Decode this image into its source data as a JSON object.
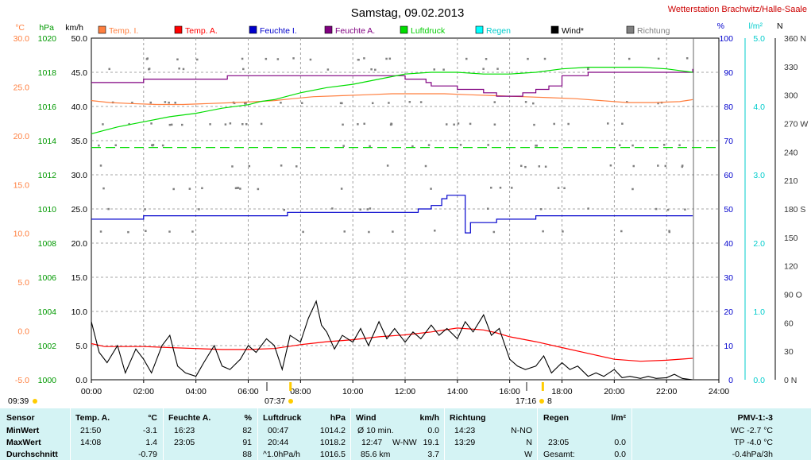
{
  "header": {
    "title": "Samstag, 09.02.2013",
    "station": "Wetterstation Brachwitz/Halle-Saale"
  },
  "colors": {
    "temp_inside": "#ff7f3f",
    "temp_outside": "#ff0000",
    "humidity_inside": "#0000cc",
    "humidity_outside": "#800080",
    "pressure": "#00dd00",
    "rain": "#00ffff",
    "wind": "#000000",
    "direction": "#808080",
    "stats_background": "#d4f3f4"
  },
  "chart_data": {
    "type": "line",
    "legend": [
      {
        "label": "Temp. I.",
        "color": "#ff7f3f"
      },
      {
        "label": "Temp. A.",
        "color": "#ff0000"
      },
      {
        "label": "Feuchte I.",
        "color": "#0000cc"
      },
      {
        "label": "Feuchte A.",
        "color": "#800080"
      },
      {
        "label": "Luftdruck",
        "color": "#00dd00"
      },
      {
        "label": "Regen",
        "color": "#00ffff"
      },
      {
        "label": "Wind*",
        "color": "#000000"
      },
      {
        "label": "Richtung",
        "color": "#808080"
      }
    ],
    "axis_units": {
      "temp": "°C",
      "pressure": "hPa",
      "wind": "km/h",
      "humidity": "%",
      "rain": "l/m²",
      "direction": "N"
    },
    "x_ticks": [
      "00:00",
      "02:00",
      "04:00",
      "06:00",
      "08:00",
      "10:00",
      "12:00",
      "14:00",
      "16:00",
      "18:00",
      "20:00",
      "22:00",
      "24:00"
    ],
    "xlim": [
      0,
      24
    ],
    "y_temp": {
      "range": [
        -5,
        30
      ],
      "ticks": [
        "30.0",
        "25.0",
        "20.0",
        "15.0",
        "10.0",
        "5.0",
        "0.0",
        "-5.0"
      ]
    },
    "y_pressure": {
      "range": [
        1000,
        1020
      ],
      "ticks": [
        "1020",
        "1018",
        "1016",
        "1014",
        "1012",
        "1010",
        "1008",
        "1006",
        "1004",
        "1002",
        "1000"
      ]
    },
    "y_wind": {
      "range": [
        0,
        50
      ],
      "ticks": [
        "50.0",
        "45.0",
        "40.0",
        "35.0",
        "30.0",
        "25.0",
        "20.0",
        "15.0",
        "10.0",
        "5.0",
        "0.0"
      ]
    },
    "y_humidity": {
      "range": [
        0,
        100
      ],
      "ticks": [
        "100",
        "90",
        "80",
        "70",
        "60",
        "50",
        "40",
        "30",
        "20",
        "10",
        "0"
      ]
    },
    "y_rain": {
      "range": [
        0,
        5
      ],
      "ticks": [
        "5.0",
        "4.0",
        "3.0",
        "2.0",
        "1.0",
        "0.0"
      ]
    },
    "y_direction": {
      "range": [
        0,
        360
      ],
      "ticks": [
        "360 N",
        "330",
        "300",
        "270 W",
        "240",
        "210",
        "180 S",
        "150",
        "120",
        "90 O",
        "60",
        "30",
        "0 N"
      ]
    },
    "extra_marks": {
      "sunrise": "07:37",
      "sunset": "17:16",
      "day_start": "09:39",
      "day_length_hours": "8"
    },
    "dashed_reference": {
      "temp": 18.8
    },
    "series": [
      {
        "name": "Temp. I.",
        "axis": "temp",
        "x": [
          0,
          0.7,
          1.5,
          2.5,
          3.5,
          4.5,
          5.5,
          6.3,
          7,
          7.7,
          8.5,
          9.5,
          10.5,
          11.5,
          12.5,
          13.5,
          14.5,
          15.5,
          16.5,
          17.5,
          18.5,
          19.5,
          20.5,
          21.5,
          22.5,
          23
        ],
        "y": [
          23.6,
          23.4,
          23.3,
          23.2,
          23.2,
          23.3,
          23.4,
          23.5,
          23.6,
          23.8,
          24.0,
          24.1,
          24.2,
          24.3,
          24.3,
          24.3,
          24.2,
          24.1,
          24.0,
          23.9,
          23.8,
          23.6,
          23.4,
          23.4,
          23.5,
          23.7
        ]
      },
      {
        "name": "Temp. A.",
        "axis": "temp",
        "x": [
          0,
          0.5,
          1,
          2,
          3,
          4,
          5,
          6,
          7,
          8,
          9,
          10,
          11,
          12,
          13,
          14,
          15,
          15.5,
          16,
          17,
          18,
          19,
          20,
          21,
          22,
          23
        ],
        "y": [
          -1.3,
          -1.6,
          -1.6,
          -1.6,
          -1.7,
          -1.8,
          -1.9,
          -1.9,
          -1.8,
          -1.4,
          -1.1,
          -0.9,
          -0.6,
          -0.4,
          -0.1,
          0.3,
          0.1,
          -0.2,
          -0.6,
          -1.1,
          -1.7,
          -2.3,
          -2.9,
          -3.1,
          -3.0,
          -2.8
        ]
      },
      {
        "name": "Feuchte I.",
        "axis": "humidity",
        "x": [
          0,
          1,
          2,
          3,
          4,
          5,
          6,
          7,
          7.5,
          8,
          9,
          10,
          11,
          12,
          12.5,
          13,
          13.4,
          13.6,
          14,
          14.2,
          14.3,
          14.5,
          14.7,
          15,
          15.3,
          15.5,
          16,
          17,
          18,
          19,
          20,
          21,
          22,
          23
        ],
        "y": [
          47,
          47,
          48,
          48,
          48,
          48,
          48,
          48,
          49,
          49,
          49,
          49,
          49,
          49,
          50,
          51,
          53,
          54,
          54,
          54,
          43,
          46,
          46,
          46,
          46,
          47,
          47,
          48,
          48,
          48,
          48,
          48,
          48,
          48
        ]
      },
      {
        "name": "Feuchte A.",
        "axis": "humidity",
        "x": [
          0,
          1,
          2,
          3,
          4,
          5,
          5.2,
          6,
          7,
          8,
          9,
          10,
          11,
          12,
          12.8,
          13,
          13.5,
          14,
          15,
          15.5,
          16,
          16.5,
          17,
          17.5,
          18,
          19,
          20,
          21,
          22,
          23
        ],
        "y": [
          87,
          87,
          88,
          88,
          88,
          88,
          89,
          89,
          89,
          89,
          89,
          89,
          89,
          88,
          87,
          86,
          86,
          85,
          84,
          83,
          83,
          84,
          85,
          86,
          89,
          90,
          90,
          90,
          90,
          91
        ]
      },
      {
        "name": "Luftdruck",
        "axis": "pressure",
        "x": [
          0,
          0.5,
          1,
          2,
          3,
          4,
          5,
          6,
          6.5,
          7,
          7.5,
          8,
          9,
          10,
          11,
          12,
          13,
          14,
          15,
          16,
          17,
          18,
          19,
          20,
          21,
          22,
          22.5,
          23
        ],
        "y": [
          1014.4,
          1014.6,
          1014.8,
          1015.1,
          1015.4,
          1015.6,
          1015.9,
          1016.1,
          1016.3,
          1016.4,
          1016.6,
          1016.8,
          1017.1,
          1017.3,
          1017.6,
          1017.9,
          1018.0,
          1018.0,
          1017.9,
          1017.9,
          1018.0,
          1018.2,
          1018.3,
          1018.3,
          1018.3,
          1018.2,
          1018.1,
          1018.0
        ]
      },
      {
        "name": "Wind*",
        "axis": "wind",
        "x": [
          0,
          0.3,
          0.6,
          1,
          1.3,
          1.7,
          2,
          2.3,
          2.7,
          3,
          3.3,
          3.6,
          4,
          4.3,
          4.7,
          5,
          5.3,
          5.7,
          6,
          6.3,
          6.7,
          7,
          7.3,
          7.6,
          8,
          8.3,
          8.6,
          8.8,
          9,
          9.3,
          9.6,
          10,
          10.3,
          10.6,
          11,
          11.3,
          11.6,
          12,
          12.3,
          12.6,
          13,
          13.3,
          13.6,
          14,
          14.3,
          14.6,
          15,
          15.3,
          15.6,
          16,
          16.3,
          16.6,
          17,
          17.3,
          17.6,
          18,
          18.3,
          18.6,
          19,
          19.3,
          19.6,
          20,
          20.3,
          20.6,
          21,
          21.3,
          21.6,
          22,
          22.3,
          22.6,
          23
        ],
        "y": [
          8.5,
          4.0,
          2.5,
          5.0,
          1.0,
          4.5,
          3.0,
          1.0,
          5.0,
          6.5,
          2.0,
          1.0,
          0.5,
          2.5,
          5.0,
          2.0,
          1.5,
          3.0,
          5.0,
          4.0,
          6.0,
          5.0,
          1.5,
          6.5,
          5.5,
          9.0,
          11.5,
          8.0,
          7.0,
          4.5,
          6.5,
          5.5,
          7.5,
          5.0,
          8.5,
          6.0,
          7.5,
          5.5,
          7.0,
          6.0,
          8.0,
          6.5,
          7.5,
          6.0,
          8.5,
          7.0,
          9.5,
          6.5,
          7.5,
          3.0,
          2.0,
          1.5,
          2.0,
          3.5,
          1.0,
          2.5,
          1.5,
          2.0,
          0.5,
          1.0,
          0.5,
          1.5,
          0.3,
          0.5,
          0.2,
          0.5,
          0.2,
          0.3,
          0.8,
          0.2,
          0.0
        ]
      }
    ]
  },
  "stats": {
    "headers": {
      "sensor": "Sensor",
      "temp_a": "Temp. A.",
      "temp_a_unit": "°C",
      "feuchte_a": "Feuchte A.",
      "feuchte_a_unit": "%",
      "luftdruck": "Luftdruck",
      "luftdruck_unit": "hPa",
      "wind": "Wind",
      "wind_unit": "km/h",
      "richtung": "Richtung",
      "regen": "Regen",
      "regen_unit": "l/m²",
      "pmv": "PMV-1:-3"
    },
    "min": {
      "label": "MinWert",
      "temp_time": "21:50",
      "temp_val": "-3.1",
      "hum_time": "16:23",
      "hum_val": "82",
      "press_time": "00:47",
      "press_val": "1014.2",
      "wind_text": "Ø 10 min.",
      "wind_val": "0.0",
      "dir_time": "14:23",
      "dir_val": "N-NO",
      "rain_time": "",
      "rain_val": "",
      "pmv": "WC -2.7 °C"
    },
    "max": {
      "label": "MaxWert",
      "temp_time": "14:08",
      "temp_val": "1.4",
      "hum_time": "23:05",
      "hum_val": "91",
      "press_time": "20:44",
      "press_val": "1018.2",
      "wind_time": "12:47",
      "wind_dir": "W-NW",
      "wind_val": "19.1",
      "dir_time": "13:29",
      "dir_val": "N",
      "rain_time": "23:05",
      "rain_val": "0.0",
      "pmv": "TP -4.0 °C"
    },
    "avg": {
      "label": "Durchschnitt",
      "temp_val": "-0.79",
      "hum_val": "88",
      "press_trend": "^1.0hPa/h",
      "press_val": "1016.5",
      "wind_km": "85.6 km",
      "wind_val": "3.7",
      "dir_val": "W",
      "rain_label": "Gesamt:",
      "rain_val": "0.0",
      "pmv": "-0.4hPa/3h"
    }
  }
}
